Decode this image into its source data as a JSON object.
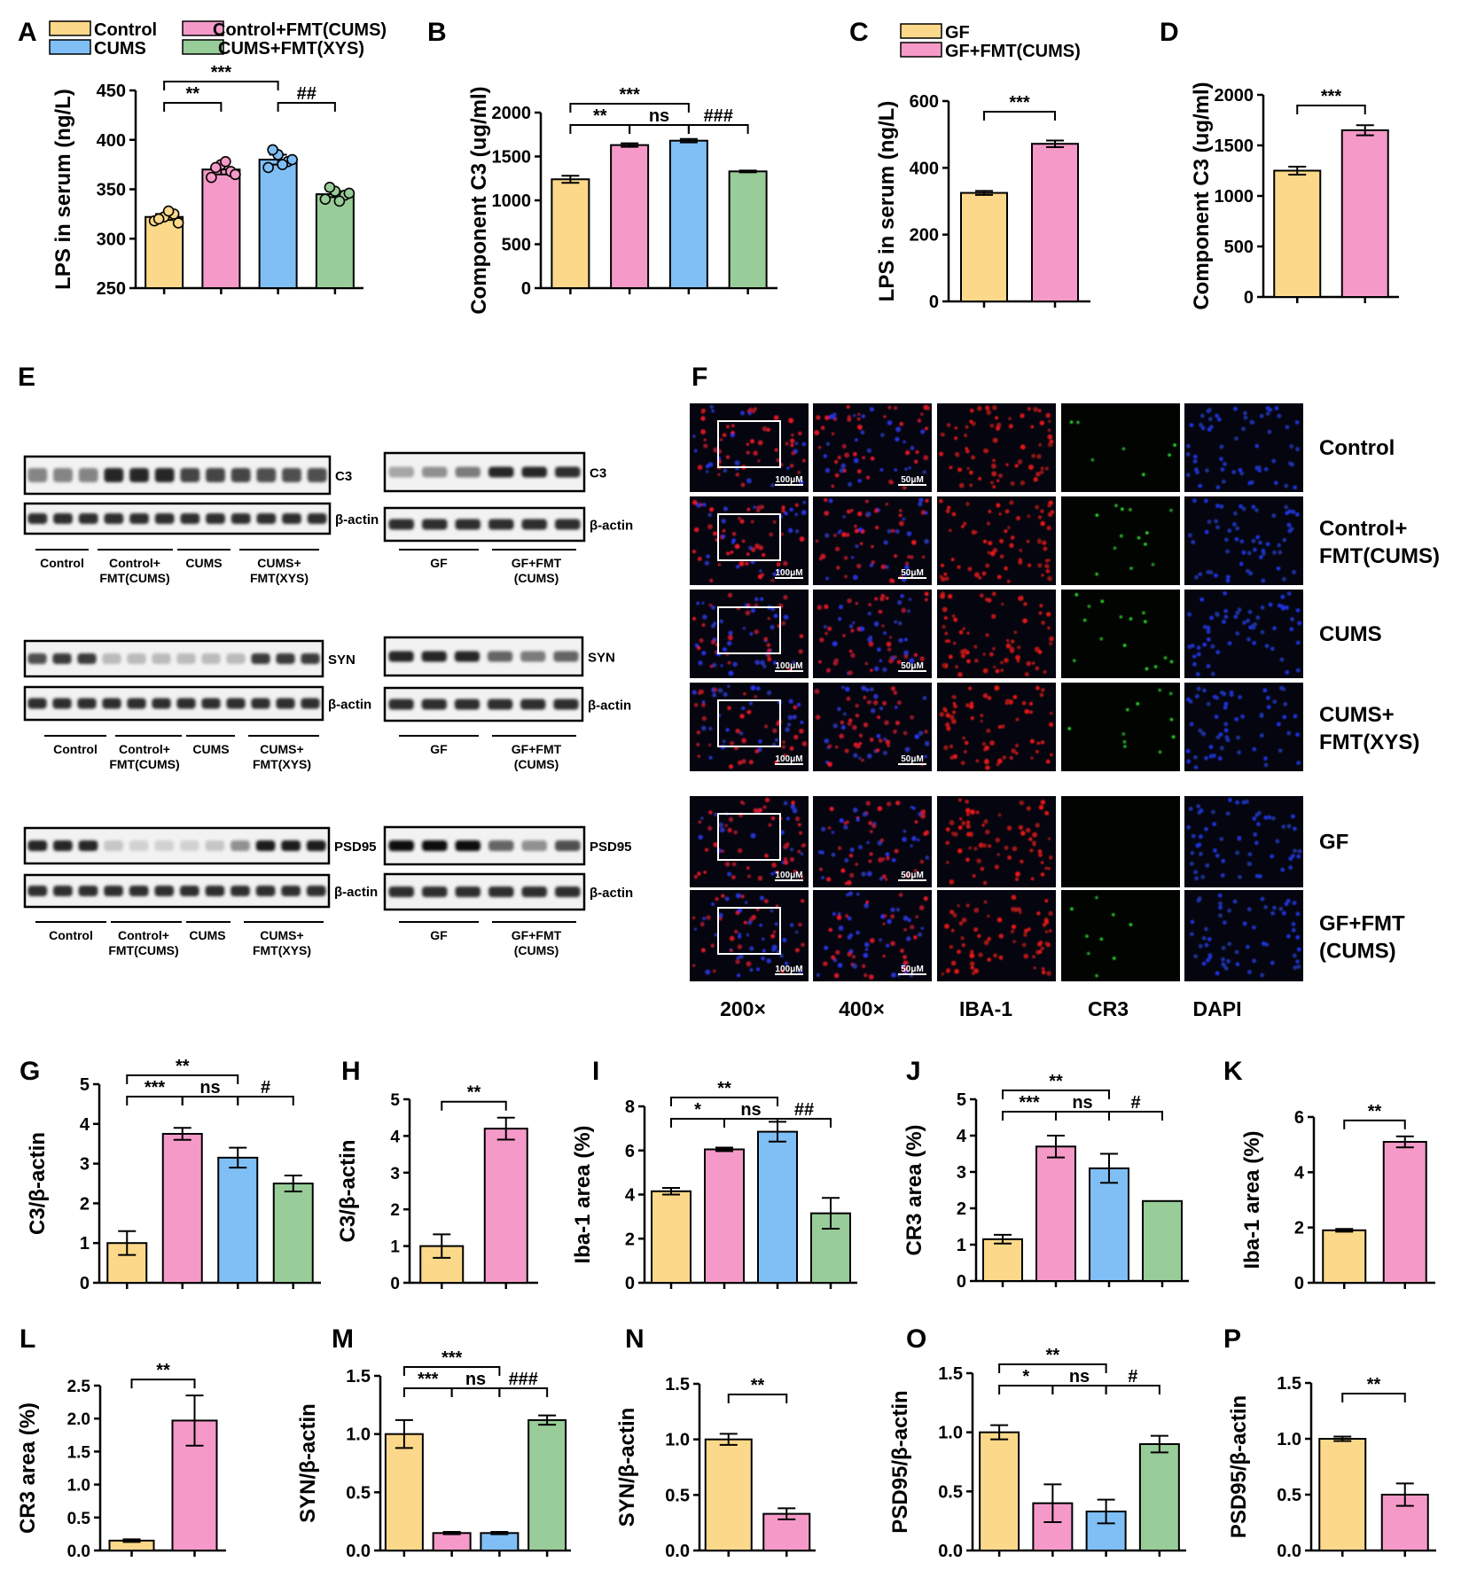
{
  "panel_letters": {
    "A": "A",
    "B": "B",
    "C": "C",
    "D": "D",
    "E": "E",
    "F": "F",
    "G": "G",
    "H": "H",
    "I": "I",
    "J": "J",
    "K": "K",
    "L": "L",
    "M": "M",
    "N": "N",
    "O": "O",
    "P": "P"
  },
  "legend_groups": [
    {
      "label": "Control",
      "color": "#FCD98A"
    },
    {
      "label": "Control+FMT(CUMS)",
      "color": "#F59AC8"
    },
    {
      "label": "CUMS",
      "color": "#7FBFF5"
    },
    {
      "label": "CUMS+FMT(XYS)",
      "color": "#98CC98"
    }
  ],
  "legend_gf": [
    {
      "label": "GF",
      "color": "#FCD98A"
    },
    {
      "label": "GF+FMT(CUMS)",
      "color": "#F59AC8"
    }
  ],
  "chart_data": [
    {
      "panel": "A",
      "type": "bar",
      "ylabel": "LPS in serum (ng/L)",
      "ylim": [
        250,
        450
      ],
      "yticks": [
        "250",
        "300",
        "350",
        "400",
        "450"
      ],
      "values": [
        322,
        370,
        380,
        345
      ],
      "errors": [
        3,
        5,
        5,
        3
      ],
      "colors": [
        "#FCD98A",
        "#F59AC8",
        "#7FBFF5",
        "#98CC98"
      ],
      "points": [
        [
          318,
          322,
          325,
          320,
          328,
          316
        ],
        [
          362,
          375,
          368,
          372,
          378,
          365
        ],
        [
          372,
          385,
          378,
          390,
          375,
          380
        ],
        [
          340,
          348,
          344,
          352,
          338,
          346
        ]
      ],
      "sig": [
        {
          "from": 0,
          "to": 1,
          "label": "**"
        },
        {
          "from": 0,
          "to": 2,
          "label": "***"
        },
        {
          "from": 2,
          "to": 3,
          "label": "##"
        }
      ]
    },
    {
      "panel": "B",
      "type": "bar",
      "ylabel": "Component C3 (ug/ml)",
      "ylim": [
        0,
        2000
      ],
      "yticks": [
        "0",
        "500",
        "1000",
        "1500",
        "2000"
      ],
      "values": [
        1240,
        1630,
        1680,
        1330
      ],
      "errors": [
        40,
        20,
        20,
        10
      ],
      "colors": [
        "#FCD98A",
        "#F59AC8",
        "#7FBFF5",
        "#98CC98"
      ],
      "sig": [
        {
          "from": 0,
          "to": 1,
          "label": "**"
        },
        {
          "from": 1,
          "to": 2,
          "label": "ns"
        },
        {
          "from": 0,
          "to": 2,
          "label": "***"
        },
        {
          "from": 2,
          "to": 3,
          "label": "###"
        }
      ]
    },
    {
      "panel": "C",
      "type": "bar",
      "ylabel": "LPS in serum (ng/L)",
      "ylim": [
        0,
        600
      ],
      "yticks": [
        "0",
        "200",
        "400",
        "600"
      ],
      "values": [
        325,
        472
      ],
      "errors": [
        6,
        10
      ],
      "colors": [
        "#FCD98A",
        "#F59AC8"
      ],
      "sig": [
        {
          "from": 0,
          "to": 1,
          "label": "***"
        }
      ]
    },
    {
      "panel": "D",
      "type": "bar",
      "ylabel": "Component C3 (ug/ml)",
      "ylim": [
        0,
        2000
      ],
      "yticks": [
        "0",
        "500",
        "1000",
        "1500",
        "2000"
      ],
      "values": [
        1250,
        1650
      ],
      "errors": [
        40,
        50
      ],
      "colors": [
        "#FCD98A",
        "#F59AC8"
      ],
      "sig": [
        {
          "from": 0,
          "to": 1,
          "label": "***"
        }
      ]
    },
    {
      "panel": "G",
      "type": "bar",
      "ylabel": "C3/β-actin",
      "ylim": [
        0,
        5
      ],
      "yticks": [
        "0",
        "1",
        "2",
        "3",
        "4",
        "5"
      ],
      "values": [
        1.0,
        3.75,
        3.15,
        2.5
      ],
      "errors": [
        0.3,
        0.15,
        0.25,
        0.2
      ],
      "colors": [
        "#FCD98A",
        "#F59AC8",
        "#7FBFF5",
        "#98CC98"
      ],
      "sig": [
        {
          "from": 0,
          "to": 1,
          "label": "***"
        },
        {
          "from": 1,
          "to": 2,
          "label": "ns"
        },
        {
          "from": 0,
          "to": 2,
          "label": "**"
        },
        {
          "from": 2,
          "to": 3,
          "label": "#"
        }
      ]
    },
    {
      "panel": "H",
      "type": "bar",
      "ylabel": "C3/β-actin",
      "ylim": [
        0,
        5
      ],
      "yticks": [
        "0",
        "1",
        "2",
        "3",
        "4",
        "5"
      ],
      "values": [
        1.0,
        4.2
      ],
      "errors": [
        0.32,
        0.3
      ],
      "colors": [
        "#FCD98A",
        "#F59AC8"
      ],
      "sig": [
        {
          "from": 0,
          "to": 1,
          "label": "**"
        }
      ]
    },
    {
      "panel": "I",
      "type": "bar",
      "ylabel": "Iba-1 area (%)",
      "ylim": [
        0,
        8
      ],
      "yticks": [
        "0",
        "2",
        "4",
        "6",
        "8"
      ],
      "values": [
        4.15,
        6.05,
        6.85,
        3.15
      ],
      "errors": [
        0.15,
        0.08,
        0.45,
        0.7
      ],
      "colors": [
        "#FCD98A",
        "#F59AC8",
        "#7FBFF5",
        "#98CC98"
      ],
      "sig": [
        {
          "from": 0,
          "to": 1,
          "label": "*"
        },
        {
          "from": 1,
          "to": 2,
          "label": "ns"
        },
        {
          "from": 0,
          "to": 2,
          "label": "**"
        },
        {
          "from": 2,
          "to": 3,
          "label": "##"
        }
      ]
    },
    {
      "panel": "J",
      "type": "bar",
      "ylabel": "CR3 area (%)",
      "ylim": [
        0,
        5
      ],
      "yticks": [
        "0",
        "1",
        "2",
        "3",
        "4",
        "5"
      ],
      "values": [
        1.15,
        3.7,
        3.1,
        2.2
      ],
      "errors": [
        0.12,
        0.3,
        0.4,
        0.0
      ],
      "colors": [
        "#FCD98A",
        "#F59AC8",
        "#7FBFF5",
        "#98CC98"
      ],
      "sig": [
        {
          "from": 0,
          "to": 1,
          "label": "***"
        },
        {
          "from": 1,
          "to": 2,
          "label": "ns"
        },
        {
          "from": 0,
          "to": 2,
          "label": "**"
        },
        {
          "from": 2,
          "to": 3,
          "label": "#"
        }
      ]
    },
    {
      "panel": "K",
      "type": "bar",
      "ylabel": "Iba-1 area (%)",
      "ylim": [
        0,
        6
      ],
      "yticks": [
        "0",
        "2",
        "4",
        "6"
      ],
      "values": [
        1.9,
        5.1
      ],
      "errors": [
        0.05,
        0.2
      ],
      "colors": [
        "#FCD98A",
        "#F59AC8"
      ],
      "sig": [
        {
          "from": 0,
          "to": 1,
          "label": "**"
        }
      ]
    },
    {
      "panel": "L",
      "type": "bar",
      "ylabel": "CR3 area (%)",
      "ylim": [
        0,
        2.5
      ],
      "yticks": [
        "0.0",
        "0.5",
        "1.0",
        "1.5",
        "2.0",
        "2.5"
      ],
      "values": [
        0.15,
        1.97
      ],
      "errors": [
        0.02,
        0.38
      ],
      "colors": [
        "#FCD98A",
        "#F59AC8"
      ],
      "sig": [
        {
          "from": 0,
          "to": 1,
          "label": "**"
        }
      ]
    },
    {
      "panel": "M",
      "type": "bar",
      "ylabel": "SYN/β-actin",
      "ylim": [
        0,
        1.5
      ],
      "yticks": [
        "0.0",
        "0.5",
        "1.0",
        "1.5"
      ],
      "values": [
        1.0,
        0.15,
        0.15,
        1.12
      ],
      "errors": [
        0.12,
        0.01,
        0.01,
        0.04
      ],
      "colors": [
        "#FCD98A",
        "#F59AC8",
        "#7FBFF5",
        "#98CC98"
      ],
      "sig": [
        {
          "from": 0,
          "to": 1,
          "label": "***"
        },
        {
          "from": 1,
          "to": 2,
          "label": "ns"
        },
        {
          "from": 0,
          "to": 2,
          "label": "***"
        },
        {
          "from": 2,
          "to": 3,
          "label": "###"
        }
      ]
    },
    {
      "panel": "N",
      "type": "bar",
      "ylabel": "SYN/β-actin",
      "ylim": [
        0,
        1.5
      ],
      "yticks": [
        "0.0",
        "0.5",
        "1.0",
        "1.5"
      ],
      "values": [
        1.0,
        0.33
      ],
      "errors": [
        0.05,
        0.05
      ],
      "colors": [
        "#FCD98A",
        "#F59AC8"
      ],
      "sig": [
        {
          "from": 0,
          "to": 1,
          "label": "**"
        }
      ]
    },
    {
      "panel": "O",
      "type": "bar",
      "ylabel": "PSD95/β-actin",
      "ylim": [
        0,
        1.5
      ],
      "yticks": [
        "0.0",
        "0.5",
        "1.0",
        "1.5"
      ],
      "values": [
        1.0,
        0.4,
        0.33,
        0.9
      ],
      "errors": [
        0.06,
        0.16,
        0.1,
        0.07
      ],
      "colors": [
        "#FCD98A",
        "#F59AC8",
        "#7FBFF5",
        "#98CC98"
      ],
      "sig": [
        {
          "from": 0,
          "to": 1,
          "label": "*"
        },
        {
          "from": 1,
          "to": 2,
          "label": "ns"
        },
        {
          "from": 0,
          "to": 2,
          "label": "**"
        },
        {
          "from": 2,
          "to": 3,
          "label": "#"
        }
      ]
    },
    {
      "panel": "P",
      "type": "bar",
      "ylabel": "PSD95/β-actin",
      "ylim": [
        0,
        1.5
      ],
      "yticks": [
        "0.0",
        "0.5",
        "1.0",
        "1.5"
      ],
      "values": [
        1.0,
        0.5
      ],
      "errors": [
        0.02,
        0.1
      ],
      "colors": [
        "#FCD98A",
        "#F59AC8"
      ],
      "sig": [
        {
          "from": 0,
          "to": 1,
          "label": "**"
        }
      ]
    }
  ],
  "western_blot": {
    "left_groups_1": [
      "Control",
      "Control+\nFMT(CUMS)",
      "CUMS",
      "CUMS+\nFMT(XYS)"
    ],
    "right_groups": [
      "GF",
      "GF+FMT\n(CUMS)"
    ],
    "rows": [
      {
        "target": "C3",
        "loading": "β-actin",
        "left_intensity": [
          0.45,
          0.45,
          0.45,
          0.9,
          0.9,
          0.9,
          0.75,
          0.75,
          0.75,
          0.7,
          0.7,
          0.7
        ],
        "right_intensity": [
          0.3,
          0.4,
          0.5,
          0.9,
          0.9,
          0.85
        ]
      },
      {
        "target": "SYN",
        "loading": "β-actin",
        "left_intensity": [
          0.7,
          0.8,
          0.8,
          0.2,
          0.2,
          0.2,
          0.2,
          0.2,
          0.2,
          0.8,
          0.8,
          0.8
        ],
        "right_intensity": [
          0.9,
          0.9,
          0.9,
          0.6,
          0.5,
          0.6
        ]
      },
      {
        "target": "PSD95",
        "loading": "β-actin",
        "left_intensity": [
          0.9,
          0.9,
          0.9,
          0.15,
          0.1,
          0.1,
          0.1,
          0.15,
          0.4,
          0.95,
          0.95,
          0.95
        ],
        "right_intensity": [
          1.0,
          1.0,
          1.0,
          0.6,
          0.4,
          0.7
        ]
      }
    ],
    "left_groups_2": [
      "Control",
      "Control+\nFMT(CUMS)",
      "CUMS",
      "CUMS+\nFMT(XYS)"
    ],
    "left_groups_3": [
      "Control",
      "Control+\nFMT(CUMS)",
      "CUMS",
      "CUMS+\nFMT(XYS)"
    ]
  },
  "microscopy": {
    "rows": [
      "Control",
      "Control+\nFMT(CUMS)",
      "CUMS",
      "CUMS+\nFMT(XYS)",
      "GF",
      "GF+FMT\n(CUMS)"
    ],
    "columns": [
      "200×",
      "400×",
      "IBA-1",
      "CR3",
      "DAPI"
    ],
    "scale_200": "100μM",
    "scale_400": "50μM",
    "cr3_level": [
      0.3,
      0.6,
      0.7,
      0.5,
      0.0,
      0.4
    ]
  }
}
